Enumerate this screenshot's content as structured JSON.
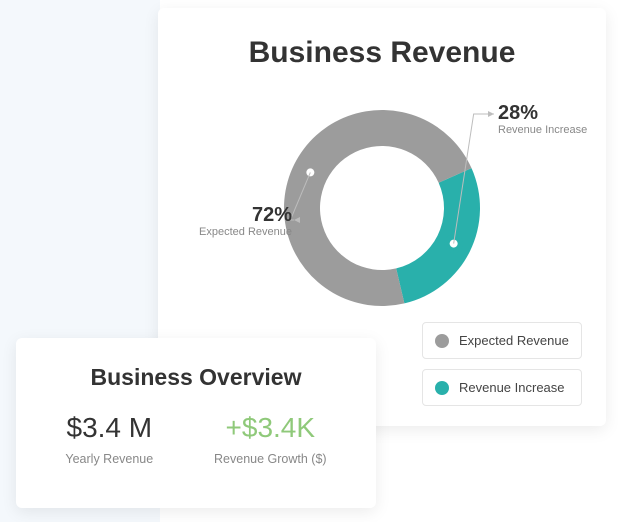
{
  "page_background": "#ffffff",
  "left_panel_background": "#f4f8fc",
  "card_background": "#ffffff",
  "card_shadow": "rgba(0,0,0,0.08)",
  "revenue_card": {
    "title": "Business Revenue",
    "title_fontsize": 30,
    "title_color": "#333333",
    "donut": {
      "type": "donut",
      "outer_radius": 98,
      "inner_radius": 62,
      "center_fill": "#ffffff",
      "start_angle_deg": -24,
      "slices": [
        {
          "key": "revenue_increase",
          "label": "Revenue Increase",
          "value": 28,
          "color": "#29b0ab"
        },
        {
          "key": "expected_revenue",
          "label": "Expected Revenue",
          "value": 72,
          "color": "#9c9c9c"
        }
      ],
      "callout_line_color": "#bdbdbd",
      "callout_marker_outer": "#ffffff",
      "callouts": [
        {
          "for": "revenue_increase",
          "percent_text": "28%",
          "label_text": "Revenue Increase",
          "side": "right",
          "marker_ring_color": "#29b0ab"
        },
        {
          "for": "expected_revenue",
          "percent_text": "72%",
          "label_text": "Expected Revenue",
          "side": "left",
          "marker_ring_color": "#9c9c9c"
        }
      ]
    },
    "legend": {
      "border_color": "#e5e5e5",
      "label_fontsize": 13,
      "label_color": "#444444",
      "items": [
        {
          "label": "Expected Revenue",
          "swatch": "#9c9c9c"
        },
        {
          "label": "Revenue Increase",
          "swatch": "#29b0ab"
        }
      ]
    }
  },
  "overview_card": {
    "title": "Business Overview",
    "title_fontsize": 23,
    "title_color": "#333333",
    "metrics": [
      {
        "value": "$3.4 M",
        "label": "Yearly Revenue",
        "value_color": "#333333"
      },
      {
        "value": "+$3.4K",
        "label": "Revenue Growth ($)",
        "value_color": "#8fc97a"
      }
    ],
    "value_fontsize": 28,
    "label_fontsize": 12.5,
    "label_color": "#888888"
  }
}
